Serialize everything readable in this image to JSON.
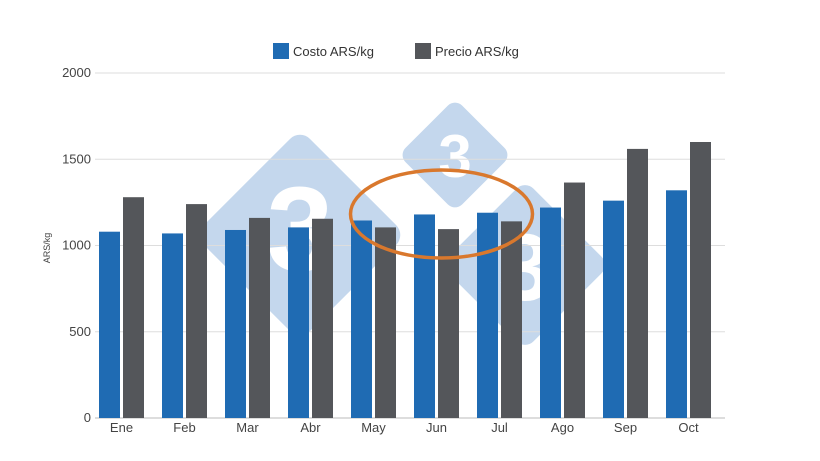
{
  "chart_data": {
    "type": "bar",
    "title": "",
    "xlabel": "",
    "ylabel": "ARS/kg",
    "ylim": [
      0,
      2000
    ],
    "yticks": [
      0,
      500,
      1000,
      1500,
      2000
    ],
    "grid": true,
    "legend_position": "top-center",
    "categories": [
      "Ene",
      "Feb",
      "Mar",
      "Abr",
      "May",
      "Jun",
      "Jul",
      "Ago",
      "Sep",
      "Oct"
    ],
    "series": [
      {
        "name": "Costo ARS/kg",
        "color": "#1f6bb3",
        "values": [
          1080,
          1070,
          1090,
          1105,
          1145,
          1180,
          1190,
          1220,
          1260,
          1320
        ]
      },
      {
        "name": "Precio ARS/kg",
        "color": "#54565a",
        "values": [
          1280,
          1240,
          1160,
          1155,
          1105,
          1095,
          1140,
          1365,
          1560,
          1600
        ]
      }
    ],
    "annotation": {
      "shape": "ellipse",
      "color": "#d9782d",
      "covers": [
        "May",
        "Jun",
        "Jul"
      ]
    }
  }
}
